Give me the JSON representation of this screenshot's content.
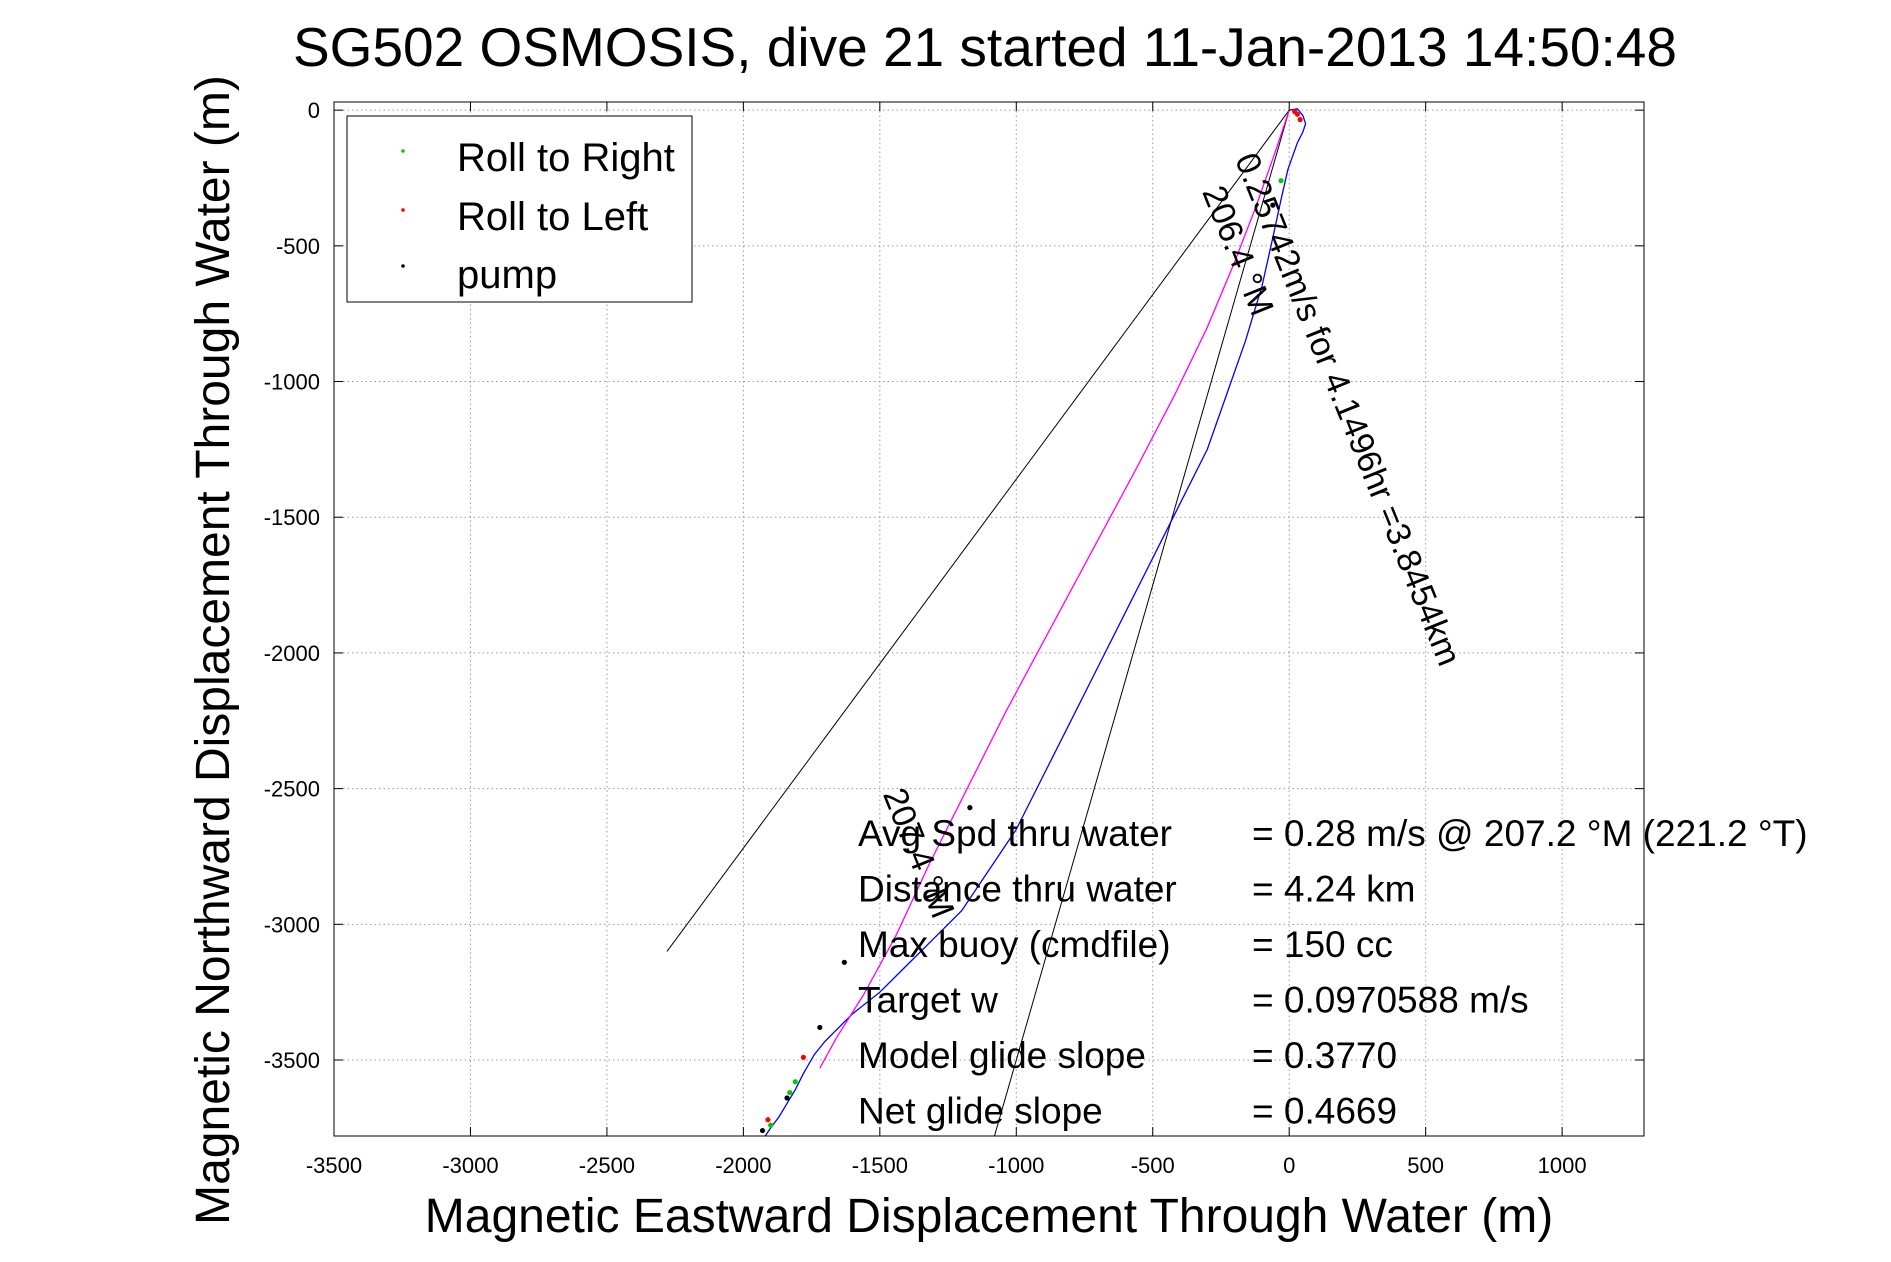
{
  "chart_data": {
    "type": "line",
    "title": "SG502 OSMOSIS, dive 21 started 11-Jan-2013 14:50:48",
    "xlabel": "Magnetic Eastward Displacement Through Water (m)",
    "ylabel": "Magnetic Northward Displacement Through Water (m)",
    "xlim": [
      -3500,
      1300
    ],
    "ylim": [
      -3780,
      30
    ],
    "grid": true,
    "xticks": [
      -3500,
      -3000,
      -2500,
      -2000,
      -1500,
      -1000,
      -500,
      0,
      500,
      1000
    ],
    "yticks": [
      0,
      -500,
      -1000,
      -1500,
      -2000,
      -2500,
      -3000,
      -3500
    ],
    "legend": {
      "position": "top-left",
      "entries": [
        {
          "label": "Roll to Right",
          "color": "#00cc00"
        },
        {
          "label": "Roll to Left",
          "color": "#ff0000"
        },
        {
          "label": "pump",
          "color": "#000000"
        }
      ]
    },
    "series": [
      {
        "color": "#0000ff",
        "x": [
          0,
          30,
          50,
          60,
          50,
          30,
          -5,
          -30,
          -60,
          -100,
          -160,
          -230,
          -300,
          -400,
          -500,
          -600,
          -700,
          -800,
          -900,
          -1000,
          -1100,
          -1200,
          -1300,
          -1400,
          -1500,
          -1600,
          -1650,
          -1700,
          -1740,
          -1780,
          -1810,
          -1840,
          -1870,
          -1900,
          -1920
        ],
        "y": [
          0,
          5,
          -20,
          -50,
          -80,
          -120,
          -220,
          -330,
          -470,
          -650,
          -850,
          -1050,
          -1250,
          -1450,
          -1650,
          -1850,
          -2050,
          -2250,
          -2450,
          -2650,
          -2800,
          -2950,
          -3050,
          -3150,
          -3250,
          -3330,
          -3380,
          -3430,
          -3480,
          -3550,
          -3610,
          -3660,
          -3710,
          -3750,
          -3780
        ]
      },
      {
        "color": "#ff00ff",
        "x": [
          0,
          -50,
          -120,
          -200,
          -300,
          -420,
          -560,
          -720,
          -880,
          -1040,
          -1180,
          -1320,
          -1440,
          -1560,
          -1660,
          -1720
        ],
        "y": [
          0,
          -150,
          -350,
          -560,
          -800,
          -1050,
          -1320,
          -1620,
          -1920,
          -2220,
          -2500,
          -2780,
          -3040,
          -3260,
          -3420,
          -3530
        ]
      }
    ],
    "markers": {
      "roll_right": {
        "color": "#00cc00",
        "x": [
          -30,
          -1810,
          -1830,
          -1900
        ],
        "y": [
          -260,
          -3580,
          -3620,
          -3740
        ]
      },
      "roll_left": {
        "color": "#ff0000",
        "x": [
          30,
          40,
          20,
          -1780,
          -1910
        ],
        "y": [
          -15,
          -35,
          -5,
          -3490,
          -3720
        ]
      },
      "pump": {
        "color": "#000000",
        "x": [
          -60,
          -1170,
          -1630,
          -1720,
          -1840,
          -1930
        ],
        "y": [
          -350,
          -2570,
          -3140,
          -3380,
          -3640,
          -3760
        ]
      }
    },
    "heading_lines": [
      {
        "x": [
          0,
          -2280
        ],
        "y": [
          0,
          -3100
        ]
      },
      {
        "x": [
          0,
          -1080
        ],
        "y": [
          0,
          -3780
        ]
      }
    ],
    "annotations": {
      "rotated": [
        {
          "text": "0.25742m/s for 4.1496hr =3.8454km",
          "x": -200,
          "y": -180,
          "angle": 68
        },
        {
          "text": "206.4 °M",
          "x": -320,
          "y": -300,
          "angle": 68
        },
        {
          "text": "207.4 °M",
          "x": -1490,
          "y": -2520,
          "angle": 68
        }
      ],
      "stats": [
        {
          "label": "Avg Spd thru water",
          "value": "=  0.28 m/s @ 207.2 °M (221.2 °T)"
        },
        {
          "label": "Distance thru water",
          "value": "=  4.24 km"
        },
        {
          "label": "Max buoy (cmdfile)",
          "value": "= 150 cc"
        },
        {
          "label": "Target w",
          "value": "= 0.0970588 m/s"
        },
        {
          "label": "Model glide slope",
          "value": "= 0.3770"
        },
        {
          "label": "Net glide slope",
          "value": "= 0.4669"
        }
      ]
    }
  }
}
